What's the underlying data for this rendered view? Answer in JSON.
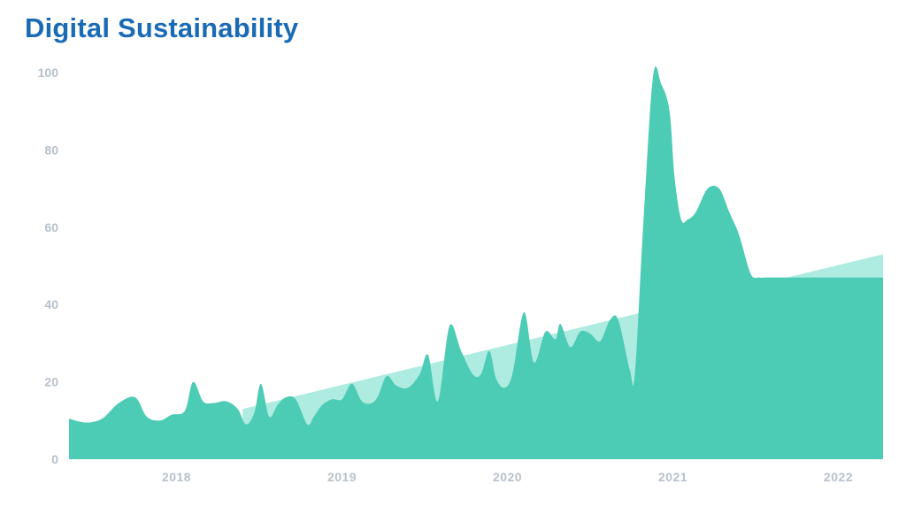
{
  "title": "Digital Sustainability",
  "colors": {
    "title": "#1a6bb5",
    "area": "#4ccbb5",
    "trend": "#aeebe0",
    "ticks": "#b7c1cb"
  },
  "chart_data": {
    "type": "area",
    "title": "Digital Sustainability",
    "xlabel": "",
    "ylabel": "",
    "ylim": [
      0,
      100
    ],
    "yticks": [
      "0",
      "20",
      "40",
      "60",
      "80",
      "100"
    ],
    "xticks": [
      "2018",
      "2019",
      "2020",
      "2021",
      "2022"
    ],
    "xlim": [
      2017.35,
      2022.27
    ],
    "grid": false,
    "legend": "none",
    "series": [
      {
        "values_x": [
          2017.35,
          2017.45,
          2017.55,
          2017.65,
          2017.75,
          2017.82,
          2017.9,
          2017.97,
          2018.05,
          2018.1,
          2018.16,
          2018.22,
          2018.3,
          2018.37,
          2018.42,
          2018.47,
          2018.51,
          2018.56,
          2018.61,
          2018.66,
          2018.72,
          2018.79,
          2018.83,
          2018.88,
          2018.94,
          2019.0,
          2019.06,
          2019.12,
          2019.18,
          2019.22,
          2019.27,
          2019.33,
          2019.4,
          2019.47,
          2019.52,
          2019.58,
          2019.65,
          2019.72,
          2019.79,
          2019.84,
          2019.89,
          2019.93,
          2019.98,
          2020.03,
          2020.1,
          2020.16,
          2020.23,
          2020.29,
          2020.32,
          2020.38,
          2020.44,
          2020.5,
          2020.56,
          2020.62,
          2020.67,
          2020.74,
          2020.77,
          2020.82,
          2020.88,
          2020.93,
          2020.98,
          2021.01,
          2021.05,
          2021.09,
          2021.14,
          2021.21,
          2021.28,
          2021.34,
          2021.4,
          2021.47,
          2021.52,
          2021.56,
          2021.59,
          2021.63,
          2021.67,
          2021.71,
          2021.75,
          2021.79,
          2021.83,
          2021.86,
          2021.9,
          2021.95,
          2022.0,
          2022.04,
          2022.08,
          2022.12,
          2022.17,
          2022.21,
          2022.25,
          2022.27
        ],
        "values": [
          10.5,
          9.5,
          10.5,
          14.5,
          16,
          11,
          10,
          11.5,
          12.5,
          20,
          15,
          14.5,
          15,
          13,
          9,
          12,
          19.5,
          11,
          14,
          16,
          15.5,
          9,
          11,
          14,
          15.5,
          15.5,
          19.5,
          15,
          14.5,
          16.5,
          21.5,
          19,
          18.5,
          22,
          27,
          15,
          34.5,
          28,
          22,
          22,
          28,
          21,
          18.5,
          22,
          38,
          25,
          33,
          31,
          35,
          29,
          33,
          32.5,
          30.5,
          36,
          36,
          23,
          22,
          60,
          99,
          97,
          90,
          73,
          62,
          62,
          64,
          70,
          70,
          64,
          58,
          48,
          47,
          47,
          47,
          47,
          47,
          47,
          47,
          47,
          47,
          47,
          47,
          47,
          47,
          47,
          47,
          47,
          47,
          47,
          47,
          47
        ]
      },
      {
        "values_x": [
          2018.4,
          2022.27
        ],
        "values": [
          13,
          53
        ]
      }
    ]
  }
}
